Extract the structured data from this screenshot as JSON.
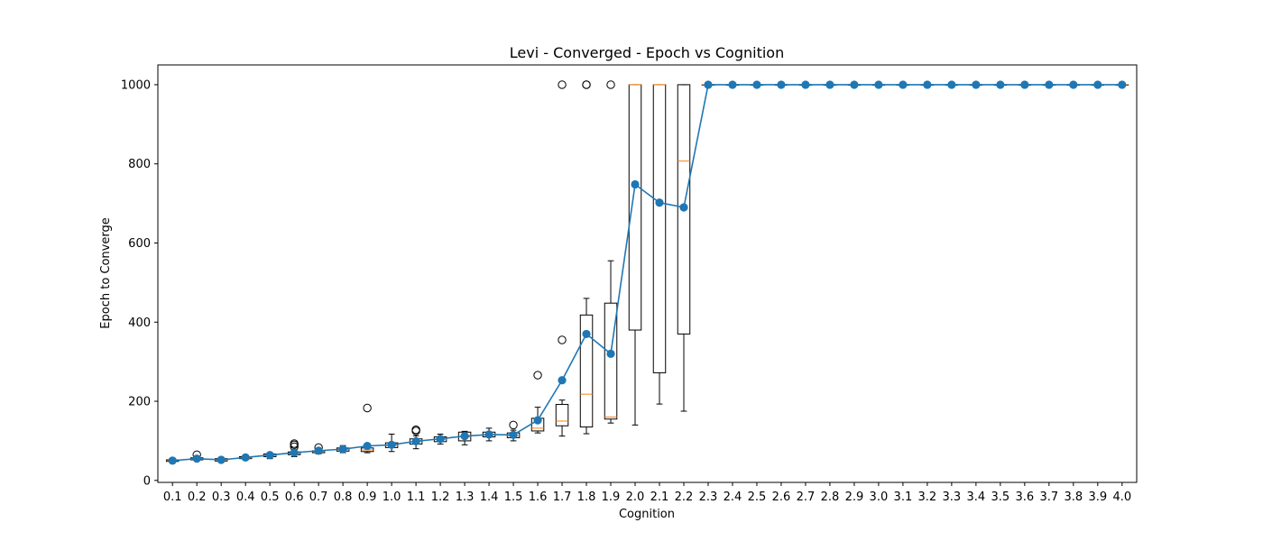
{
  "chart_data": {
    "type": "box",
    "title": "Levi - Converged - Epoch vs Cognition",
    "xlabel": "Cognition",
    "ylabel": "Epoch to Converge",
    "ylim": [
      -5,
      1050
    ],
    "yticks": [
      0,
      200,
      400,
      600,
      800,
      1000
    ],
    "grid": false,
    "categories": [
      "0.1",
      "0.2",
      "0.3",
      "0.4",
      "0.5",
      "0.6",
      "0.7",
      "0.8",
      "0.9",
      "1.0",
      "1.1",
      "1.2",
      "1.3",
      "1.4",
      "1.5",
      "1.6",
      "1.7",
      "1.8",
      "1.9",
      "2.0",
      "2.1",
      "2.2",
      "2.3",
      "2.4",
      "2.5",
      "2.6",
      "2.7",
      "2.8",
      "2.9",
      "3.0",
      "3.1",
      "3.2",
      "3.3",
      "3.4",
      "3.5",
      "3.6",
      "3.7",
      "3.8",
      "3.9",
      "4.0"
    ],
    "boxes": [
      {
        "whislo": 45,
        "q1": 48,
        "med": 50,
        "q3": 52,
        "whishi": 56,
        "fliers": []
      },
      {
        "whislo": 50,
        "q1": 52,
        "med": 54,
        "q3": 57,
        "whishi": 60,
        "fliers": [
          65
        ]
      },
      {
        "whislo": 47,
        "q1": 49,
        "med": 51,
        "q3": 55,
        "whishi": 57,
        "fliers": []
      },
      {
        "whislo": 53,
        "q1": 55,
        "med": 57,
        "q3": 60,
        "whishi": 63,
        "fliers": []
      },
      {
        "whislo": 55,
        "q1": 60,
        "med": 63,
        "q3": 67,
        "whishi": 70,
        "fliers": []
      },
      {
        "whislo": 60,
        "q1": 65,
        "med": 68,
        "q3": 72,
        "whishi": 78,
        "fliers": [
          85,
          90,
          93
        ]
      },
      {
        "whislo": 67,
        "q1": 70,
        "med": 73,
        "q3": 75,
        "whishi": 78,
        "fliers": [
          83
        ]
      },
      {
        "whislo": 70,
        "q1": 74,
        "med": 78,
        "q3": 82,
        "whishi": 88,
        "fliers": []
      },
      {
        "whislo": 70,
        "q1": 73,
        "med": 77,
        "q3": 82,
        "whishi": 88,
        "fliers": [
          183
        ]
      },
      {
        "whislo": 73,
        "q1": 83,
        "med": 88,
        "q3": 95,
        "whishi": 117,
        "fliers": []
      },
      {
        "whislo": 80,
        "q1": 92,
        "med": 98,
        "q3": 105,
        "whishi": 113,
        "fliers": [
          125,
          128
        ]
      },
      {
        "whislo": 92,
        "q1": 98,
        "med": 103,
        "q3": 110,
        "whishi": 117,
        "fliers": []
      },
      {
        "whislo": 90,
        "q1": 100,
        "med": 110,
        "q3": 122,
        "whishi": 124,
        "fliers": []
      },
      {
        "whislo": 100,
        "q1": 110,
        "med": 116,
        "q3": 122,
        "whishi": 132,
        "fliers": []
      },
      {
        "whislo": 100,
        "q1": 108,
        "med": 113,
        "q3": 120,
        "whishi": 127,
        "fliers": [
          140
        ]
      },
      {
        "whislo": 120,
        "q1": 125,
        "med": 132,
        "q3": 157,
        "whishi": 185,
        "fliers": [
          266
        ]
      },
      {
        "whislo": 112,
        "q1": 138,
        "med": 150,
        "q3": 192,
        "whishi": 203,
        "fliers": [
          355,
          1000
        ]
      },
      {
        "whislo": 118,
        "q1": 135,
        "med": 218,
        "q3": 418,
        "whishi": 460,
        "fliers": [
          1000,
          1000
        ]
      },
      {
        "whislo": 145,
        "q1": 155,
        "med": 160,
        "q3": 448,
        "whishi": 555,
        "fliers": [
          1000
        ]
      },
      {
        "whislo": 140,
        "q1": 380,
        "med": 1000,
        "q3": 1000,
        "whishi": 1000,
        "fliers": []
      },
      {
        "whislo": 193,
        "q1": 272,
        "med": 1000,
        "q3": 1000,
        "whishi": 1000,
        "fliers": []
      },
      {
        "whislo": 175,
        "q1": 370,
        "med": 807,
        "q3": 1000,
        "whishi": 1000,
        "fliers": []
      },
      {
        "whislo": 1000,
        "q1": 1000,
        "med": 1000,
        "q3": 1000,
        "whishi": 1000,
        "fliers": []
      },
      {
        "whislo": 1000,
        "q1": 1000,
        "med": 1000,
        "q3": 1000,
        "whishi": 1000,
        "fliers": []
      },
      {
        "whislo": 1000,
        "q1": 1000,
        "med": 1000,
        "q3": 1000,
        "whishi": 1000,
        "fliers": []
      },
      {
        "whislo": 1000,
        "q1": 1000,
        "med": 1000,
        "q3": 1000,
        "whishi": 1000,
        "fliers": []
      },
      {
        "whislo": 1000,
        "q1": 1000,
        "med": 1000,
        "q3": 1000,
        "whishi": 1000,
        "fliers": []
      },
      {
        "whislo": 1000,
        "q1": 1000,
        "med": 1000,
        "q3": 1000,
        "whishi": 1000,
        "fliers": []
      },
      {
        "whislo": 1000,
        "q1": 1000,
        "med": 1000,
        "q3": 1000,
        "whishi": 1000,
        "fliers": []
      },
      {
        "whislo": 1000,
        "q1": 1000,
        "med": 1000,
        "q3": 1000,
        "whishi": 1000,
        "fliers": []
      },
      {
        "whislo": 1000,
        "q1": 1000,
        "med": 1000,
        "q3": 1000,
        "whishi": 1000,
        "fliers": []
      },
      {
        "whislo": 1000,
        "q1": 1000,
        "med": 1000,
        "q3": 1000,
        "whishi": 1000,
        "fliers": []
      },
      {
        "whislo": 1000,
        "q1": 1000,
        "med": 1000,
        "q3": 1000,
        "whishi": 1000,
        "fliers": []
      },
      {
        "whislo": 1000,
        "q1": 1000,
        "med": 1000,
        "q3": 1000,
        "whishi": 1000,
        "fliers": []
      },
      {
        "whislo": 1000,
        "q1": 1000,
        "med": 1000,
        "q3": 1000,
        "whishi": 1000,
        "fliers": []
      },
      {
        "whislo": 1000,
        "q1": 1000,
        "med": 1000,
        "q3": 1000,
        "whishi": 1000,
        "fliers": []
      },
      {
        "whislo": 1000,
        "q1": 1000,
        "med": 1000,
        "q3": 1000,
        "whishi": 1000,
        "fliers": []
      },
      {
        "whislo": 1000,
        "q1": 1000,
        "med": 1000,
        "q3": 1000,
        "whishi": 1000,
        "fliers": []
      },
      {
        "whislo": 1000,
        "q1": 1000,
        "med": 1000,
        "q3": 1000,
        "whishi": 1000,
        "fliers": []
      },
      {
        "whislo": 1000,
        "q1": 1000,
        "med": 1000,
        "q3": 1000,
        "whishi": 1000,
        "fliers": []
      }
    ],
    "mean_line": {
      "values": [
        50,
        55,
        52,
        58,
        64,
        70,
        75,
        79,
        87,
        90,
        99,
        105,
        112,
        116,
        115,
        152,
        253,
        370,
        320,
        748,
        702,
        690,
        1000,
        1000,
        1000,
        1000,
        1000,
        1000,
        1000,
        1000,
        1000,
        1000,
        1000,
        1000,
        1000,
        1000,
        1000,
        1000,
        1000,
        1000
      ]
    },
    "colors": {
      "mean_line": "#1f77b4",
      "median": "#ff7f0e",
      "box": "#000000"
    }
  }
}
